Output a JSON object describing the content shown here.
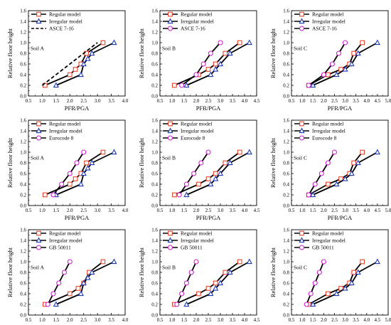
{
  "chart_data": [
    {
      "type": "line",
      "xlabel": "PFR/PGA",
      "ylabel": "Relative floor height",
      "soil": "Soil A",
      "xlim": [
        0.5,
        4.0
      ],
      "ylim": [
        0,
        1.6
      ],
      "xticks": [
        "0.5",
        "1.0",
        "1.5",
        "2.0",
        "2.5",
        "3.0",
        "3.5",
        "4.0"
      ],
      "yticks": [
        "0.0",
        "0.2",
        "0.4",
        "0.6",
        "0.8",
        "1.0",
        "1.2",
        "1.4",
        "1.6"
      ],
      "series": [
        {
          "name": "Regular model",
          "marker": "square",
          "marker_color": "#e8442a",
          "x": [
            1.1,
            2.0,
            2.2,
            2.4,
            2.6,
            3.2
          ],
          "y": [
            0.2,
            0.4,
            0.5,
            0.6,
            0.8,
            1.0
          ]
        },
        {
          "name": "Irregular model",
          "marker": "triangle",
          "marker_color": "#1f3cb4",
          "x": [
            1.5,
            2.4,
            2.5,
            2.65,
            2.8,
            3.6
          ],
          "y": [
            0.2,
            0.4,
            0.6,
            0.7,
            0.8,
            1.0
          ]
        },
        {
          "name": "ASCE 7-16",
          "marker": "none",
          "dashed": true,
          "x": [
            1.0,
            3.0
          ],
          "y": [
            0.2,
            1.0
          ]
        }
      ]
    },
    {
      "type": "line",
      "xlabel": "PFR/PGA",
      "ylabel": "Relative floor height",
      "soil": "Soil B",
      "xlim": [
        0.5,
        4.5
      ],
      "ylim": [
        0,
        1.6
      ],
      "xticks": [
        "0.5",
        "1.0",
        "1.5",
        "2.0",
        "2.5",
        "3.0",
        "3.5",
        "4.0",
        "4.5"
      ],
      "yticks": [
        "0.0",
        "0.2",
        "0.4",
        "0.6",
        "0.8",
        "1.0",
        "1.2",
        "1.4",
        "1.6"
      ],
      "series": [
        {
          "name": "Regular model",
          "marker": "square",
          "marker_color": "#e8442a",
          "x": [
            1.1,
            2.1,
            2.5,
            2.8,
            3.2,
            3.8
          ],
          "y": [
            0.2,
            0.4,
            0.5,
            0.6,
            0.8,
            1.0
          ]
        },
        {
          "name": "Irregular model",
          "marker": "triangle",
          "marker_color": "#1f3cb4",
          "x": [
            1.6,
            2.6,
            2.8,
            3.0,
            3.4,
            4.2
          ],
          "y": [
            0.2,
            0.4,
            0.5,
            0.6,
            0.8,
            1.0
          ]
        },
        {
          "name": "ASCE 7-16",
          "marker": "circle",
          "marker_color": "#d020d0",
          "x": [
            1.4,
            2.0,
            2.3,
            2.6,
            3.0
          ],
          "y": [
            0.2,
            0.4,
            0.6,
            0.8,
            1.0
          ]
        }
      ]
    },
    {
      "type": "line",
      "xlabel": "PFR/PGA",
      "ylabel": "Relative floor height",
      "soil": "Soil C",
      "xlim": [
        0.5,
        5.0
      ],
      "ylim": [
        0,
        1.6
      ],
      "xticks": [
        "0.5",
        "1.0",
        "1.5",
        "2.0",
        "2.5",
        "3.0",
        "3.5",
        "4.0",
        "4.5",
        "5.0"
      ],
      "yticks": [
        "0.0",
        "0.2",
        "0.4",
        "0.6",
        "0.8",
        "1.0",
        "1.2",
        "1.4",
        "1.6"
      ],
      "series": [
        {
          "name": "Regular model",
          "marker": "square",
          "marker_color": "#e8442a",
          "x": [
            1.3,
            2.2,
            2.8,
            3.2,
            3.4,
            3.8
          ],
          "y": [
            0.2,
            0.4,
            0.5,
            0.6,
            0.8,
            1.0
          ]
        },
        {
          "name": "Irregular model",
          "marker": "triangle",
          "marker_color": "#1f3cb4",
          "x": [
            1.5,
            2.6,
            3.0,
            3.3,
            3.6,
            4.5
          ],
          "y": [
            0.2,
            0.4,
            0.5,
            0.6,
            0.8,
            1.0
          ]
        },
        {
          "name": "ASCE 7-16",
          "marker": "circle",
          "marker_color": "#d020d0",
          "x": [
            1.3,
            2.0,
            2.4,
            2.7,
            3.0
          ],
          "y": [
            0.2,
            0.4,
            0.6,
            0.8,
            1.0
          ]
        }
      ]
    },
    {
      "type": "line",
      "xlabel": "PFR/PGA",
      "ylabel": "Relative floor height",
      "soil": "Soil A",
      "xlim": [
        0.5,
        4.0
      ],
      "ylim": [
        0,
        1.6
      ],
      "xticks": [
        "0.5",
        "1.0",
        "1.5",
        "2.0",
        "2.5",
        "3.0",
        "3.5",
        "4.0"
      ],
      "yticks": [
        "0.0",
        "0.2",
        "0.4",
        "0.6",
        "0.8",
        "1.0",
        "1.2",
        "1.4",
        "1.6"
      ],
      "series": [
        {
          "name": "Regular model",
          "marker": "square",
          "marker_color": "#e8442a",
          "x": [
            1.1,
            2.0,
            2.2,
            2.4,
            2.6,
            3.2
          ],
          "y": [
            0.2,
            0.4,
            0.5,
            0.6,
            0.8,
            1.0
          ]
        },
        {
          "name": "Irregular model",
          "marker": "triangle",
          "marker_color": "#1f3cb4",
          "x": [
            1.5,
            2.4,
            2.5,
            2.65,
            2.8,
            3.6
          ],
          "y": [
            0.2,
            0.4,
            0.6,
            0.7,
            0.8,
            1.0
          ]
        },
        {
          "name": "Eurocode 8",
          "marker": "circle",
          "marker_color": "#d020d0",
          "x": [
            1.4,
            1.7,
            2.0,
            2.25,
            2.5
          ],
          "y": [
            0.2,
            0.4,
            0.6,
            0.8,
            1.0
          ]
        }
      ]
    },
    {
      "type": "line",
      "xlabel": "PFR/PGA",
      "ylabel": "Relative floor height",
      "soil": "Soil B",
      "xlim": [
        0.5,
        4.5
      ],
      "ylim": [
        0,
        1.6
      ],
      "xticks": [
        "0.5",
        "1.0",
        "1.5",
        "2.0",
        "2.5",
        "3.0",
        "3.5",
        "4.0",
        "4.5"
      ],
      "yticks": [
        "0.0",
        "0.2",
        "0.4",
        "0.6",
        "0.8",
        "1.0",
        "1.2",
        "1.4",
        "1.6"
      ],
      "series": [
        {
          "name": "Regular model",
          "marker": "square",
          "marker_color": "#e8442a",
          "x": [
            1.1,
            2.1,
            2.5,
            2.8,
            3.2,
            3.8
          ],
          "y": [
            0.2,
            0.4,
            0.5,
            0.6,
            0.8,
            1.0
          ]
        },
        {
          "name": "Irregular model",
          "marker": "triangle",
          "marker_color": "#1f3cb4",
          "x": [
            1.6,
            2.6,
            2.8,
            3.0,
            3.4,
            4.2
          ],
          "y": [
            0.2,
            0.4,
            0.5,
            0.6,
            0.8,
            1.0
          ]
        },
        {
          "name": "Eurocode 8",
          "marker": "circle",
          "marker_color": "#d020d0",
          "x": [
            1.3,
            1.6,
            1.9,
            2.2,
            2.5
          ],
          "y": [
            0.2,
            0.4,
            0.6,
            0.8,
            1.0
          ]
        }
      ]
    },
    {
      "type": "line",
      "xlabel": "PFR/PGA",
      "ylabel": "Relative floor height",
      "soil": "Soil C",
      "xlim": [
        0.5,
        5.0
      ],
      "ylim": [
        0,
        1.6
      ],
      "xticks": [
        "0.5",
        "1.0",
        "1.5",
        "2.0",
        "2.5",
        "3.0",
        "3.5",
        "4.0",
        "4.5",
        "5.0"
      ],
      "yticks": [
        "0.0",
        "0.2",
        "0.4",
        "0.6",
        "0.8",
        "1.0",
        "1.2",
        "1.4",
        "1.6"
      ],
      "series": [
        {
          "name": "Regular model",
          "marker": "square",
          "marker_color": "#e8442a",
          "x": [
            1.3,
            2.2,
            2.8,
            3.2,
            3.4,
            3.8
          ],
          "y": [
            0.2,
            0.4,
            0.5,
            0.6,
            0.8,
            1.0
          ]
        },
        {
          "name": "Irregular model",
          "marker": "triangle",
          "marker_color": "#1f3cb4",
          "x": [
            1.5,
            2.6,
            3.0,
            3.3,
            3.6,
            4.5
          ],
          "y": [
            0.2,
            0.4,
            0.5,
            0.6,
            0.8,
            1.0
          ]
        },
        {
          "name": "Eurocode 8",
          "marker": "circle",
          "marker_color": "#d020d0",
          "x": [
            1.3,
            1.6,
            1.9,
            2.2,
            2.5
          ],
          "y": [
            0.2,
            0.4,
            0.6,
            0.8,
            1.0
          ]
        }
      ]
    },
    {
      "type": "line",
      "xlabel": "PFR/PGA",
      "ylabel": "Relative floor height",
      "soil": "Soil A",
      "xlim": [
        0.5,
        4.0
      ],
      "ylim": [
        0,
        1.6
      ],
      "xticks": [
        "0.5",
        "1.0",
        "1.5",
        "2.0",
        "2.5",
        "3.0",
        "3.5",
        "4.0"
      ],
      "yticks": [
        "0.0",
        "0.2",
        "0.4",
        "0.6",
        "0.8",
        "1.0",
        "1.2",
        "1.4",
        "1.6"
      ],
      "series": [
        {
          "name": "Regular model",
          "marker": "square",
          "marker_color": "#e8442a",
          "x": [
            1.1,
            2.0,
            2.3,
            2.5,
            2.7,
            3.2
          ],
          "y": [
            0.2,
            0.4,
            0.5,
            0.6,
            0.8,
            1.0
          ]
        },
        {
          "name": "Irregular model",
          "marker": "triangle",
          "marker_color": "#1f3cb4",
          "x": [
            1.5,
            2.4,
            2.5,
            2.65,
            2.8,
            3.6
          ],
          "y": [
            0.2,
            0.4,
            0.6,
            0.7,
            0.8,
            1.0
          ]
        },
        {
          "name": "GB 50011",
          "marker": "circle",
          "marker_color": "#d020d0",
          "x": [
            1.2,
            1.4,
            1.6,
            1.8,
            2.0
          ],
          "y": [
            0.2,
            0.4,
            0.6,
            0.8,
            1.0
          ]
        }
      ]
    },
    {
      "type": "line",
      "xlabel": "PFR/PGA",
      "ylabel": "Relative floor height",
      "soil": "Soil B",
      "xlim": [
        0.5,
        4.5
      ],
      "ylim": [
        0,
        1.6
      ],
      "xticks": [
        "0.5",
        "1.0",
        "1.5",
        "2.0",
        "2.5",
        "3.0",
        "3.5",
        "4.0",
        "4.5"
      ],
      "yticks": [
        "0.0",
        "0.2",
        "0.4",
        "0.6",
        "0.8",
        "1.0",
        "1.2",
        "1.4",
        "1.6"
      ],
      "series": [
        {
          "name": "Regular model",
          "marker": "square",
          "marker_color": "#e8442a",
          "x": [
            1.1,
            2.1,
            2.5,
            2.8,
            3.2,
            3.8
          ],
          "y": [
            0.2,
            0.4,
            0.5,
            0.6,
            0.8,
            1.0
          ]
        },
        {
          "name": "Irregular model",
          "marker": "triangle",
          "marker_color": "#1f3cb4",
          "x": [
            1.6,
            2.6,
            2.8,
            3.0,
            3.4,
            4.2
          ],
          "y": [
            0.2,
            0.4,
            0.5,
            0.6,
            0.8,
            1.0
          ]
        },
        {
          "name": "GB 50011",
          "marker": "circle",
          "marker_color": "#d020d0",
          "x": [
            1.2,
            1.4,
            1.6,
            1.8,
            2.0
          ],
          "y": [
            0.2,
            0.4,
            0.6,
            0.8,
            1.0
          ]
        }
      ]
    },
    {
      "type": "line",
      "xlabel": "PFR/PGA",
      "ylabel": "Relative floor height",
      "soil": "Soil C",
      "xlim": [
        0.5,
        5.0
      ],
      "ylim": [
        0,
        1.6
      ],
      "xticks": [
        "0.5",
        "1.0",
        "1.5",
        "2.0",
        "2.5",
        "3.0",
        "3.5",
        "4.0",
        "4.5",
        "5.0"
      ],
      "yticks": [
        "0.0",
        "0.2",
        "0.4",
        "0.6",
        "0.8",
        "1.0",
        "1.2",
        "1.4",
        "1.6"
      ],
      "series": [
        {
          "name": "Regular model",
          "marker": "square",
          "marker_color": "#e8442a",
          "x": [
            1.3,
            2.2,
            2.8,
            3.2,
            3.4,
            3.8
          ],
          "y": [
            0.2,
            0.4,
            0.5,
            0.6,
            0.8,
            1.0
          ]
        },
        {
          "name": "Irregular model",
          "marker": "triangle",
          "marker_color": "#1f3cb4",
          "x": [
            1.5,
            2.6,
            3.0,
            3.3,
            3.6,
            4.5
          ],
          "y": [
            0.2,
            0.4,
            0.5,
            0.6,
            0.8,
            1.0
          ]
        },
        {
          "name": "GB 50011",
          "marker": "circle",
          "marker_color": "#d020d0",
          "x": [
            1.2,
            1.4,
            1.6,
            1.8,
            2.0
          ],
          "y": [
            0.2,
            0.4,
            0.6,
            0.8,
            1.0
          ]
        }
      ]
    }
  ]
}
